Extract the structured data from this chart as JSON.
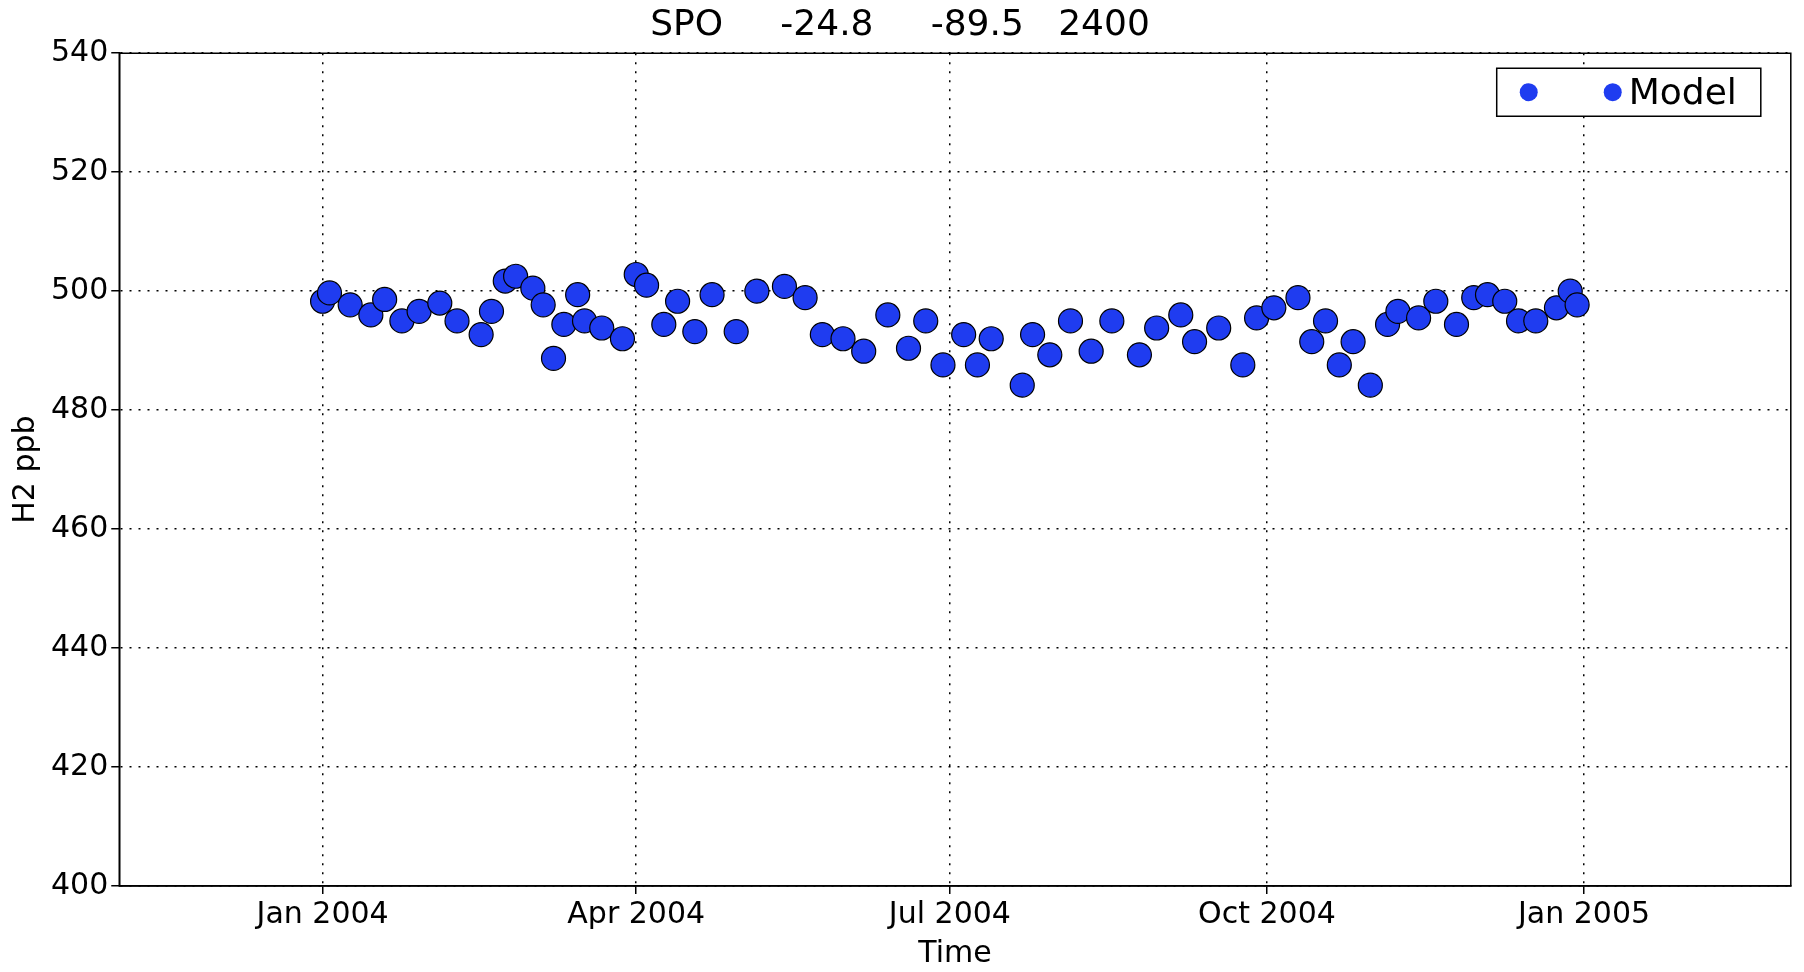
{
  "chart_data": {
    "type": "scatter",
    "title": "SPO     -24.8     -89.5   2400",
    "xlabel": "Time",
    "ylabel": "H2 ppb",
    "xlim": [
      "2003-11-03",
      "2005-03-02"
    ],
    "xticks": [
      {
        "value": "2004-01-01",
        "label": "Jan 2004"
      },
      {
        "value": "2004-04-01",
        "label": "Apr 2004"
      },
      {
        "value": "2004-07-01",
        "label": "Jul 2004"
      },
      {
        "value": "2004-10-01",
        "label": "Oct 2004"
      },
      {
        "value": "2005-01-01",
        "label": "Jan 2005"
      }
    ],
    "ylim": [
      400,
      540
    ],
    "yticks": [
      400,
      420,
      440,
      460,
      480,
      500,
      520,
      540
    ],
    "grid": true,
    "legend": "top right",
    "marker": "circle",
    "series": [
      {
        "name": "Model",
        "color": "#1f3cf0",
        "x": [
          "2004-01-01",
          "2004-01-03",
          "2004-01-09",
          "2004-01-15",
          "2004-01-19",
          "2004-01-24",
          "2004-01-29",
          "2004-02-04",
          "2004-02-09",
          "2004-02-16",
          "2004-02-19",
          "2004-02-23",
          "2004-02-26",
          "2004-03-02",
          "2004-03-05",
          "2004-03-08",
          "2004-03-11",
          "2004-03-15",
          "2004-03-17",
          "2004-03-22",
          "2004-03-28",
          "2004-04-01",
          "2004-04-04",
          "2004-04-09",
          "2004-04-13",
          "2004-04-18",
          "2004-04-23",
          "2004-04-30",
          "2004-05-06",
          "2004-05-14",
          "2004-05-20",
          "2004-05-25",
          "2004-05-31",
          "2004-06-06",
          "2004-06-13",
          "2004-06-19",
          "2004-06-24",
          "2004-06-29",
          "2004-07-05",
          "2004-07-09",
          "2004-07-13",
          "2004-07-22",
          "2004-07-25",
          "2004-07-30",
          "2004-08-05",
          "2004-08-11",
          "2004-08-17",
          "2004-08-25",
          "2004-08-30",
          "2004-09-06",
          "2004-09-10",
          "2004-09-17",
          "2004-09-24",
          "2004-09-28",
          "2004-10-03",
          "2004-10-10",
          "2004-10-14",
          "2004-10-18",
          "2004-10-22",
          "2004-10-26",
          "2004-10-31",
          "2004-11-05",
          "2004-11-08",
          "2004-11-14",
          "2004-11-19",
          "2004-11-25",
          "2004-11-30",
          "2004-12-04",
          "2004-12-09",
          "2004-12-13",
          "2004-12-18",
          "2004-12-24",
          "2004-12-28",
          "2004-12-30"
        ],
        "values": [
          498.3,
          499.7,
          497.7,
          496,
          498.6,
          495,
          496.6,
          498,
          495,
          492.7,
          496.6,
          501.7,
          502.5,
          500.5,
          497.7,
          488.7,
          494.4,
          499.4,
          495,
          493.8,
          492,
          502.8,
          501,
          494.4,
          498.3,
          493.2,
          499.4,
          493.2,
          500,
          500.8,
          498.9,
          492.7,
          492,
          489.9,
          496,
          490.4,
          495,
          487.6,
          492.7,
          487.6,
          492,
          484.2,
          492.7,
          489.3,
          495,
          489.9,
          495,
          489.3,
          493.8,
          496,
          491.5,
          493.8,
          487.6,
          495.5,
          497.2,
          498.9,
          491.5,
          495,
          487.6,
          491.5,
          484.2,
          494.4,
          496.6,
          495.5,
          498.3,
          494.4,
          498.9,
          499.4,
          498.3,
          495,
          495,
          497.2,
          500,
          497.7
        ]
      }
    ]
  }
}
